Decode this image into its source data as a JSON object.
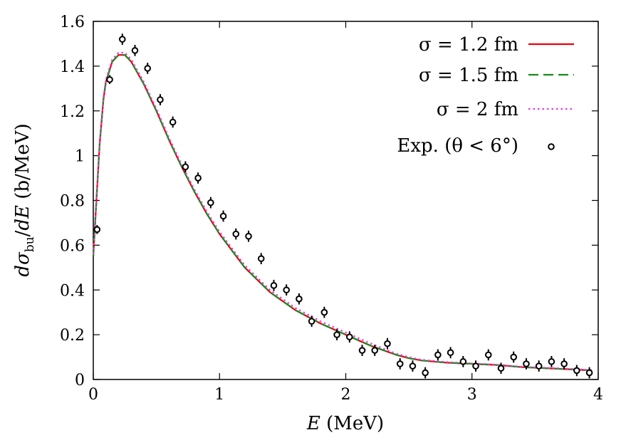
{
  "chart_data": {
    "type": "line",
    "xlabel": "E (MeV)",
    "ylabel": "dσ_bu/dE (b/MeV)",
    "xlim": [
      0,
      4
    ],
    "ylim": [
      0,
      1.6
    ],
    "x_ticks": [
      0,
      1,
      2,
      3,
      4
    ],
    "x_tick_labels": [
      "0",
      "1",
      "2",
      "3",
      "4"
    ],
    "y_ticks": [
      0,
      0.2,
      0.4,
      0.6,
      0.8,
      1.0,
      1.2,
      1.4,
      1.6
    ],
    "y_tick_labels": [
      "0",
      "0.2",
      "0.4",
      "0.6",
      "0.8",
      "1",
      "1.2",
      "1.4",
      "1.6"
    ],
    "grid": false,
    "legend_position": "top-right",
    "series": [
      {
        "name": "σ = 1.2 fm",
        "style": "solid",
        "color": "#e8000b",
        "x": [
          0.0,
          0.02,
          0.05,
          0.08,
          0.1,
          0.15,
          0.2,
          0.25,
          0.3,
          0.4,
          0.5,
          0.6,
          0.7,
          0.8,
          0.9,
          1.0,
          1.2,
          1.4,
          1.6,
          1.8,
          2.0,
          2.2,
          2.4,
          2.5,
          2.6,
          2.8,
          3.0,
          3.2,
          3.4,
          3.6,
          3.8,
          3.95
        ],
        "y": [
          0.55,
          0.75,
          1.05,
          1.25,
          1.33,
          1.42,
          1.45,
          1.45,
          1.42,
          1.32,
          1.2,
          1.07,
          0.95,
          0.84,
          0.74,
          0.65,
          0.5,
          0.39,
          0.31,
          0.25,
          0.2,
          0.15,
          0.11,
          0.095,
          0.085,
          0.075,
          0.07,
          0.065,
          0.055,
          0.05,
          0.045,
          0.04
        ]
      },
      {
        "name": "σ = 1.5 fm",
        "style": "dashed",
        "color": "#1a8a1a",
        "x": [
          0.0,
          0.02,
          0.05,
          0.08,
          0.1,
          0.15,
          0.2,
          0.25,
          0.3,
          0.4,
          0.5,
          0.6,
          0.7,
          0.8,
          0.9,
          1.0,
          1.2,
          1.4,
          1.6,
          1.8,
          2.0,
          2.2,
          2.4,
          2.5,
          2.6,
          2.8,
          3.0,
          3.2,
          3.4,
          3.6,
          3.8,
          3.95
        ],
        "y": [
          0.55,
          0.75,
          1.05,
          1.25,
          1.33,
          1.42,
          1.45,
          1.45,
          1.42,
          1.32,
          1.2,
          1.07,
          0.95,
          0.84,
          0.74,
          0.65,
          0.5,
          0.39,
          0.31,
          0.25,
          0.2,
          0.15,
          0.11,
          0.095,
          0.085,
          0.075,
          0.07,
          0.065,
          0.055,
          0.05,
          0.045,
          0.04
        ]
      },
      {
        "name": "σ = 2 fm",
        "style": "dotted",
        "color": "#e040e0",
        "x": [
          0.0,
          0.02,
          0.05,
          0.08,
          0.1,
          0.15,
          0.2,
          0.25,
          0.3,
          0.4,
          0.5,
          0.6,
          0.7,
          0.8,
          0.9,
          1.0,
          1.2,
          1.4,
          1.6,
          1.8,
          2.0,
          2.2,
          2.4,
          2.5,
          2.6,
          2.8,
          3.0,
          3.2,
          3.4,
          3.6,
          3.8,
          3.95
        ],
        "y": [
          0.56,
          0.76,
          1.06,
          1.26,
          1.34,
          1.43,
          1.46,
          1.46,
          1.43,
          1.33,
          1.21,
          1.08,
          0.96,
          0.85,
          0.75,
          0.66,
          0.51,
          0.4,
          0.32,
          0.26,
          0.21,
          0.16,
          0.115,
          0.1,
          0.088,
          0.078,
          0.072,
          0.066,
          0.057,
          0.052,
          0.047,
          0.042
        ]
      }
    ],
    "points": {
      "name": "Exp. (θ < 6°)",
      "color": "#000000",
      "x": [
        0.03,
        0.13,
        0.23,
        0.33,
        0.43,
        0.53,
        0.63,
        0.73,
        0.83,
        0.93,
        1.03,
        1.13,
        1.23,
        1.33,
        1.43,
        1.53,
        1.63,
        1.73,
        1.83,
        1.93,
        2.03,
        2.13,
        2.23,
        2.33,
        2.43,
        2.53,
        2.63,
        2.73,
        2.83,
        2.93,
        3.03,
        3.13,
        3.23,
        3.33,
        3.43,
        3.53,
        3.63,
        3.73,
        3.83,
        3.93
      ],
      "y": [
        0.67,
        1.34,
        1.52,
        1.47,
        1.39,
        1.25,
        1.15,
        0.95,
        0.9,
        0.79,
        0.73,
        0.65,
        0.64,
        0.54,
        0.42,
        0.4,
        0.36,
        0.26,
        0.3,
        0.2,
        0.19,
        0.13,
        0.13,
        0.16,
        0.07,
        0.06,
        0.03,
        0.11,
        0.12,
        0.08,
        0.06,
        0.11,
        0.05,
        0.1,
        0.07,
        0.06,
        0.08,
        0.07,
        0.04,
        0.03
      ],
      "err": [
        0.02,
        0.02,
        0.025,
        0.025,
        0.025,
        0.025,
        0.025,
        0.025,
        0.025,
        0.025,
        0.025,
        0.025,
        0.025,
        0.025,
        0.025,
        0.025,
        0.025,
        0.025,
        0.025,
        0.025,
        0.025,
        0.025,
        0.025,
        0.025,
        0.025,
        0.025,
        0.025,
        0.025,
        0.025,
        0.025,
        0.025,
        0.025,
        0.025,
        0.025,
        0.025,
        0.025,
        0.025,
        0.025,
        0.025,
        0.025
      ]
    }
  }
}
